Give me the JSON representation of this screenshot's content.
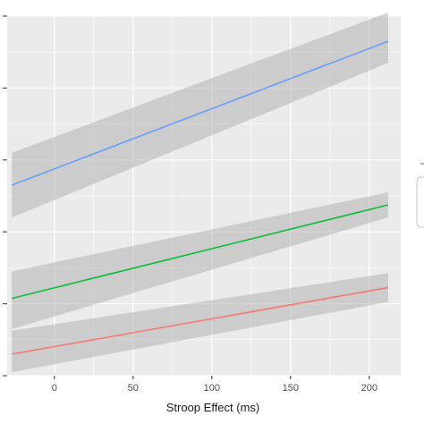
{
  "chart_data": {
    "type": "line",
    "title": "",
    "xlabel": "Stroop Effect (ms)",
    "ylabel": "",
    "xlim": [
      -30,
      220
    ],
    "ylim": [
      0,
      1
    ],
    "x_ticks": [
      0,
      50,
      100,
      150,
      200
    ],
    "grid": true,
    "background": "#ebebeb",
    "series": [
      {
        "color": "#619cff",
        "x": [
          -27,
          212
        ],
        "values": [
          0.53,
          0.93
        ],
        "band_lower": [
          0.44,
          0.87
        ],
        "band_upper": [
          0.62,
          1.01
        ]
      },
      {
        "color": "#00ba38",
        "x": [
          -27,
          212
        ],
        "values": [
          0.215,
          0.475
        ],
        "band_lower": [
          0.13,
          0.44
        ],
        "band_upper": [
          0.29,
          0.51
        ]
      },
      {
        "color": "#f8766d",
        "x": [
          -27,
          212
        ],
        "values": [
          0.06,
          0.245
        ],
        "band_lower": [
          0.01,
          0.205
        ],
        "band_upper": [
          0.125,
          0.285
        ]
      }
    ]
  }
}
